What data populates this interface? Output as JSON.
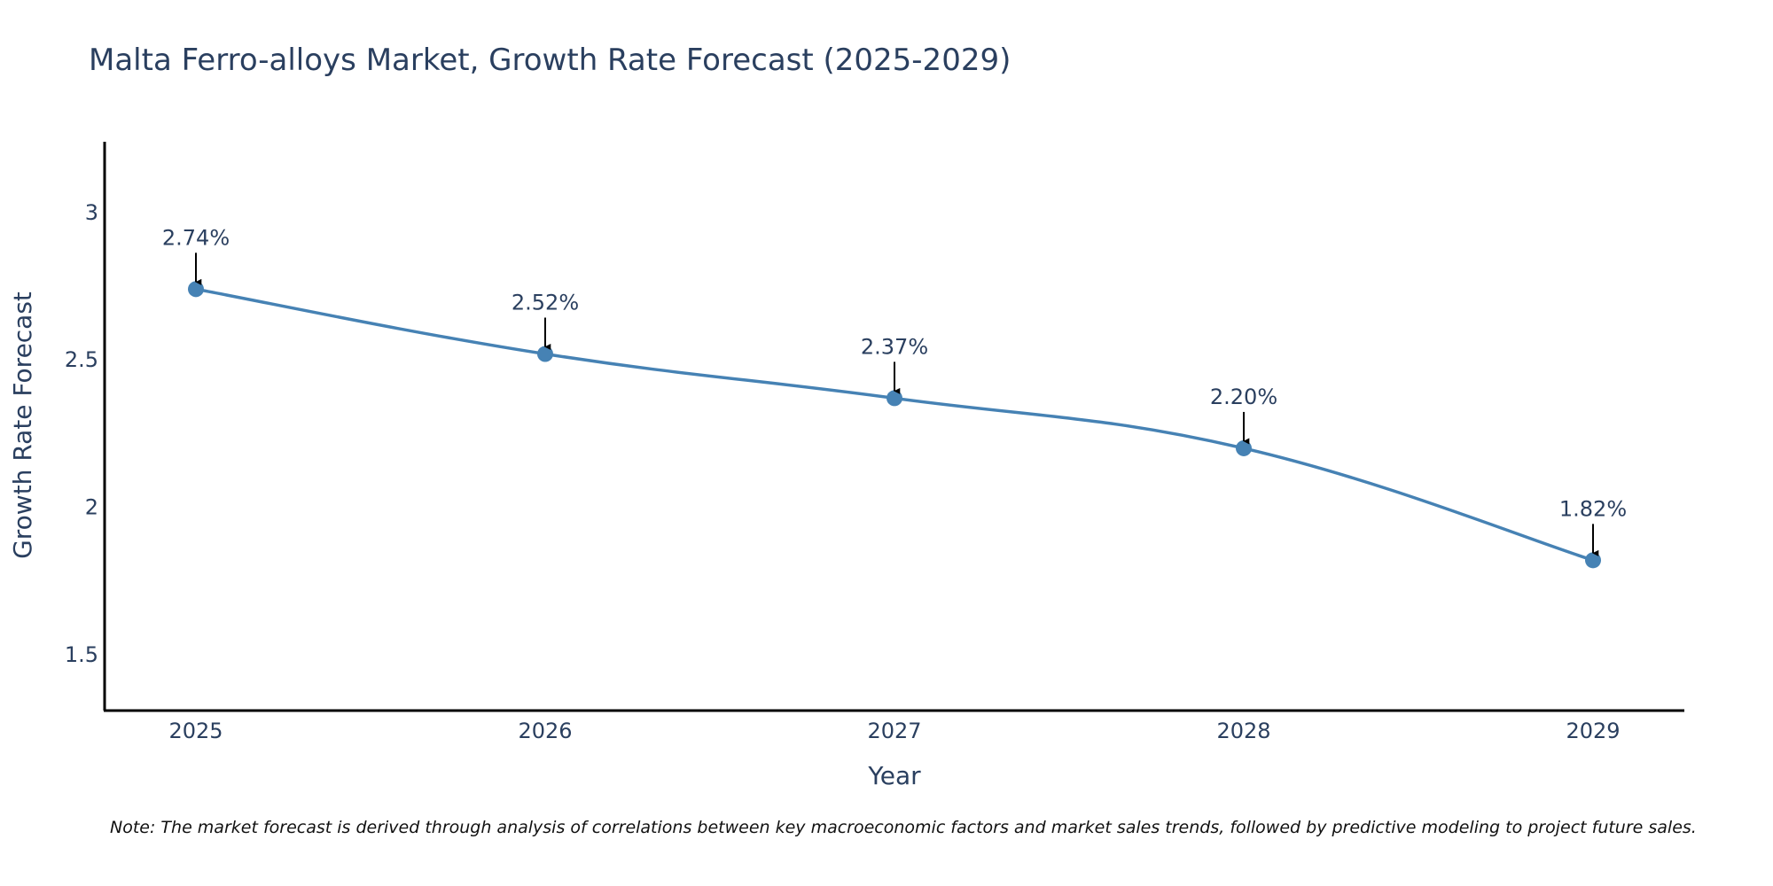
{
  "chart_data": {
    "type": "line",
    "title": "Malta Ferro-alloys Market, Growth Rate Forecast (2025-2029)",
    "xlabel": "Year",
    "ylabel": "Growth Rate Forecast",
    "categories": [
      "2025",
      "2026",
      "2027",
      "2028",
      "2029"
    ],
    "values": [
      2.74,
      2.52,
      2.37,
      2.2,
      1.82
    ],
    "data_labels": [
      "2.74%",
      "2.52%",
      "2.37%",
      "2.20%",
      "1.82%"
    ],
    "y_ticks": [
      1.5,
      2,
      2.5,
      3
    ],
    "y_tick_labels": [
      "1.5",
      "2",
      "2.5",
      "3"
    ],
    "ylim": [
      1.31,
      3.24
    ],
    "grid": false,
    "line_shape": "spline",
    "line_color": "#4682B4",
    "marker_color": "#4682B4",
    "note": "Note: The market forecast is derived through analysis of correlations between key macroeconomic factors and market sales trends, followed by predictive modeling to project future sales."
  }
}
